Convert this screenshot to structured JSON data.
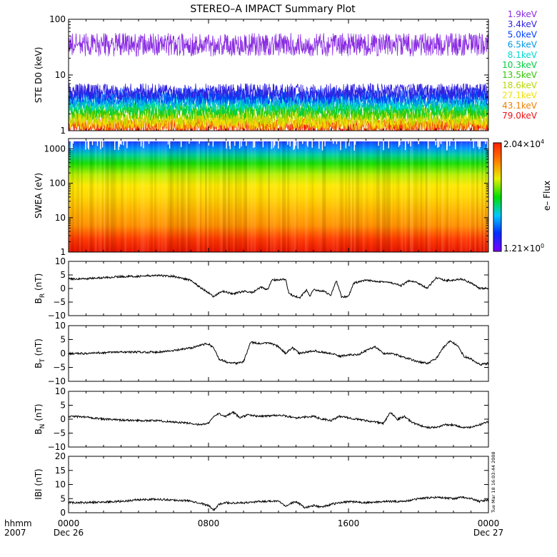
{
  "title": "STEREO–A IMPACT Summary Plot",
  "time_axis": {
    "row1_label": "hhmm",
    "row2_label": "2007",
    "ticks": [
      {
        "t": 0,
        "hhmm": "0000",
        "date": "Dec 26"
      },
      {
        "t": 8,
        "hhmm": "0800",
        "date": ""
      },
      {
        "t": 16,
        "hhmm": "1600",
        "date": ""
      },
      {
        "t": 24,
        "hhmm": "0000",
        "date": "Dec 27"
      }
    ]
  },
  "timestamp_vertical": "Tue Mar 18 16:03:44 2008",
  "colors": {
    "frame": "#000000",
    "trace": "#000000",
    "spectrogram_low": "#7a00ff",
    "spectrogram_high": "#ff2000"
  },
  "chart_data": [
    {
      "id": "ste",
      "type": "line",
      "ylabel": "STE D0 (keV)",
      "yscale": "log",
      "ylim": [
        1,
        100
      ],
      "yticks": [
        {
          "v": 1,
          "label": "1"
        },
        {
          "v": 10,
          "label": "10"
        },
        {
          "v": 100,
          "label": "100"
        }
      ],
      "xlim": [
        0,
        24
      ],
      "series": [
        {
          "name": "1.9keV",
          "color": "#8a2be2",
          "level": 35.0
        },
        {
          "name": "3.4keV",
          "color": "#3020e0",
          "level": 5.0
        },
        {
          "name": "5.0keV",
          "color": "#0040ff",
          "level": 4.2
        },
        {
          "name": "6.5keV",
          "color": "#0098e8",
          "level": 3.6
        },
        {
          "name": "8.1keV",
          "color": "#00d8d0",
          "level": 3.1
        },
        {
          "name": "10.3keV",
          "color": "#00d040",
          "level": 2.6
        },
        {
          "name": "13.5keV",
          "color": "#30c800",
          "level": 2.2
        },
        {
          "name": "18.6keV",
          "color": "#b8d800",
          "level": 1.8
        },
        {
          "name": "27.1keV",
          "color": "#f0e000",
          "level": 1.5
        },
        {
          "name": "43.1keV",
          "color": "#f08000",
          "level": 1.3
        },
        {
          "name": "79.0keV",
          "color": "#f01010",
          "level": 1.15
        }
      ]
    },
    {
      "id": "swea",
      "type": "heatmap",
      "ylabel": "SWEA (eV)",
      "yscale": "log",
      "ylim": [
        1,
        2000
      ],
      "yticks": [
        {
          "v": 1,
          "label": "1"
        },
        {
          "v": 10,
          "label": "10"
        },
        {
          "v": 100,
          "label": "100"
        },
        {
          "v": 1000,
          "label": "1000"
        }
      ],
      "xlim": [
        0,
        24
      ],
      "colorbar": {
        "label": "e– Flux",
        "max_mantissa": "2.04×10",
        "max_exponent": "4",
        "min_mantissa": "1.21×10",
        "min_exponent": "0"
      }
    },
    {
      "id": "br",
      "type": "line",
      "ylabel_main": "B",
      "ylabel_sub": "R",
      "ylabel_unit": " (nT)",
      "ylim": [
        -10,
        10
      ],
      "yticks": [
        {
          "v": -10,
          "label": "−10"
        },
        {
          "v": -5,
          "label": "−5"
        },
        {
          "v": 0,
          "label": "0"
        },
        {
          "v": 5,
          "label": "5"
        },
        {
          "v": 10,
          "label": "10"
        }
      ],
      "xlim": [
        0,
        24
      ],
      "points": [
        [
          0,
          3.5
        ],
        [
          1,
          3.6
        ],
        [
          2,
          4.0
        ],
        [
          3,
          4.4
        ],
        [
          4,
          4.5
        ],
        [
          5,
          4.8
        ],
        [
          6,
          4.5
        ],
        [
          7,
          3.0
        ],
        [
          7.5,
          0.5
        ],
        [
          8,
          -1.5
        ],
        [
          8.3,
          -3.0
        ],
        [
          8.8,
          -1.0
        ],
        [
          9.4,
          -2.0
        ],
        [
          10,
          -1.0
        ],
        [
          10.5,
          -1.5
        ],
        [
          11,
          0.5
        ],
        [
          11.4,
          -0.5
        ],
        [
          11.6,
          3.0
        ],
        [
          12.4,
          3.5
        ],
        [
          12.6,
          -2.0
        ],
        [
          13.2,
          -3.5
        ],
        [
          13.6,
          -0.5
        ],
        [
          13.8,
          -3.0
        ],
        [
          14,
          -0.5
        ],
        [
          14.6,
          -1.0
        ],
        [
          15,
          -2.5
        ],
        [
          15.3,
          3.0
        ],
        [
          15.6,
          -3.0
        ],
        [
          16,
          -3.0
        ],
        [
          16.3,
          2.0
        ],
        [
          17,
          3.0
        ],
        [
          18,
          2.5
        ],
        [
          18.5,
          2.0
        ],
        [
          19,
          1.0
        ],
        [
          19.5,
          3.0
        ],
        [
          20,
          2.0
        ],
        [
          20.5,
          0.0
        ],
        [
          21,
          4.0
        ],
        [
          21.5,
          3.0
        ],
        [
          22,
          3.0
        ],
        [
          22.5,
          3.5
        ],
        [
          23,
          2.0
        ],
        [
          23.5,
          0.0
        ],
        [
          24,
          0.0
        ]
      ]
    },
    {
      "id": "bt",
      "type": "line",
      "ylabel_main": "B",
      "ylabel_sub": "T",
      "ylabel_unit": " (nT)",
      "ylim": [
        -10,
        10
      ],
      "yticks": [
        {
          "v": -10,
          "label": "−10"
        },
        {
          "v": -5,
          "label": "−5"
        },
        {
          "v": 0,
          "label": "0"
        },
        {
          "v": 5,
          "label": "5"
        },
        {
          "v": 10,
          "label": "10"
        }
      ],
      "xlim": [
        0,
        24
      ],
      "points": [
        [
          0,
          0.0
        ],
        [
          1,
          0.0
        ],
        [
          2,
          0.3
        ],
        [
          3,
          0.5
        ],
        [
          4,
          0.5
        ],
        [
          5,
          0.5
        ],
        [
          6,
          1.0
        ],
        [
          7,
          2.0
        ],
        [
          7.5,
          3.0
        ],
        [
          8,
          3.5
        ],
        [
          8.3,
          2.0
        ],
        [
          8.6,
          -2.0
        ],
        [
          9,
          -3.0
        ],
        [
          9.6,
          -3.5
        ],
        [
          10,
          -3.0
        ],
        [
          10.4,
          4.0
        ],
        [
          11,
          3.5
        ],
        [
          11.5,
          3.8
        ],
        [
          12,
          2.5
        ],
        [
          12.4,
          0.0
        ],
        [
          12.8,
          2.0
        ],
        [
          13.2,
          0.0
        ],
        [
          14,
          1.0
        ],
        [
          14.5,
          0.5
        ],
        [
          15,
          0.0
        ],
        [
          15.5,
          -1.0
        ],
        [
          16,
          -0.5
        ],
        [
          16.5,
          -0.5
        ],
        [
          17,
          1.0
        ],
        [
          17.5,
          2.5
        ],
        [
          18,
          0.0
        ],
        [
          18.5,
          0.0
        ],
        [
          19,
          -1.0
        ],
        [
          19.5,
          -2.0
        ],
        [
          20,
          -3.0
        ],
        [
          20.5,
          -3.5
        ],
        [
          21,
          -2.0
        ],
        [
          21.4,
          2.0
        ],
        [
          21.8,
          4.5
        ],
        [
          22.2,
          3.0
        ],
        [
          22.6,
          -1.0
        ],
        [
          23,
          -2.0
        ],
        [
          23.5,
          -4.0
        ],
        [
          24,
          -3.5
        ]
      ]
    },
    {
      "id": "bn",
      "type": "line",
      "ylabel_main": "B",
      "ylabel_sub": "N",
      "ylabel_unit": " (nT)",
      "ylim": [
        -10,
        10
      ],
      "yticks": [
        {
          "v": -10,
          "label": "−10"
        },
        {
          "v": -5,
          "label": "−5"
        },
        {
          "v": 0,
          "label": "0"
        },
        {
          "v": 5,
          "label": "5"
        },
        {
          "v": 10,
          "label": "10"
        }
      ],
      "xlim": [
        0,
        24
      ],
      "points": [
        [
          0,
          1.0
        ],
        [
          1,
          0.8
        ],
        [
          2,
          0.0
        ],
        [
          3,
          -0.3
        ],
        [
          4,
          -0.5
        ],
        [
          5,
          -0.5
        ],
        [
          6,
          -1.0
        ],
        [
          7,
          -1.5
        ],
        [
          7.5,
          -2.0
        ],
        [
          8,
          -1.5
        ],
        [
          8.3,
          1.0
        ],
        [
          8.6,
          2.0
        ],
        [
          9,
          1.0
        ],
        [
          9.4,
          2.5
        ],
        [
          9.8,
          0.5
        ],
        [
          10.2,
          1.5
        ],
        [
          11,
          1.0
        ],
        [
          12,
          1.5
        ],
        [
          12.5,
          1.0
        ],
        [
          13,
          0.5
        ],
        [
          14,
          1.0
        ],
        [
          14.5,
          0.0
        ],
        [
          15,
          -0.5
        ],
        [
          15.5,
          1.0
        ],
        [
          16,
          0.5
        ],
        [
          17,
          -0.5
        ],
        [
          17.5,
          -1.0
        ],
        [
          18,
          -1.5
        ],
        [
          18.4,
          2.5
        ],
        [
          18.8,
          0.0
        ],
        [
          19.2,
          1.0
        ],
        [
          19.6,
          -1.0
        ],
        [
          20,
          -2.0
        ],
        [
          20.5,
          -3.0
        ],
        [
          21,
          -3.0
        ],
        [
          21.5,
          -2.0
        ],
        [
          22,
          -2.0
        ],
        [
          22.5,
          -3.0
        ],
        [
          23,
          -3.0
        ],
        [
          23.5,
          -2.0
        ],
        [
          24,
          -1.0
        ]
      ]
    },
    {
      "id": "bmag",
      "type": "line",
      "ylabel": "IBI (nT)",
      "ylim": [
        0,
        20
      ],
      "yticks": [
        {
          "v": 0,
          "label": "0"
        },
        {
          "v": 5,
          "label": "5"
        },
        {
          "v": 10,
          "label": "10"
        },
        {
          "v": 15,
          "label": "15"
        },
        {
          "v": 20,
          "label": "20"
        }
      ],
      "xlim": [
        0,
        24
      ],
      "points": [
        [
          0,
          3.6
        ],
        [
          1,
          3.6
        ],
        [
          2,
          3.8
        ],
        [
          3,
          4.0
        ],
        [
          4,
          4.6
        ],
        [
          5,
          4.8
        ],
        [
          6,
          4.5
        ],
        [
          7,
          4.2
        ],
        [
          7.5,
          3.5
        ],
        [
          8,
          2.5
        ],
        [
          8.3,
          1.0
        ],
        [
          8.6,
          3.0
        ],
        [
          9,
          3.5
        ],
        [
          10,
          3.5
        ],
        [
          11,
          4.0
        ],
        [
          12,
          4.2
        ],
        [
          12.4,
          2.5
        ],
        [
          13,
          4.0
        ],
        [
          13.5,
          1.8
        ],
        [
          14,
          2.5
        ],
        [
          14.5,
          2.0
        ],
        [
          15,
          3.0
        ],
        [
          15.5,
          3.5
        ],
        [
          16,
          4.0
        ],
        [
          17,
          3.5
        ],
        [
          18,
          4.0
        ],
        [
          19,
          4.0
        ],
        [
          19.5,
          4.3
        ],
        [
          20,
          5.0
        ],
        [
          21,
          5.5
        ],
        [
          22,
          5.0
        ],
        [
          22.5,
          5.5
        ],
        [
          23,
          5.0
        ],
        [
          23.5,
          4.0
        ],
        [
          24,
          4.5
        ]
      ]
    }
  ]
}
